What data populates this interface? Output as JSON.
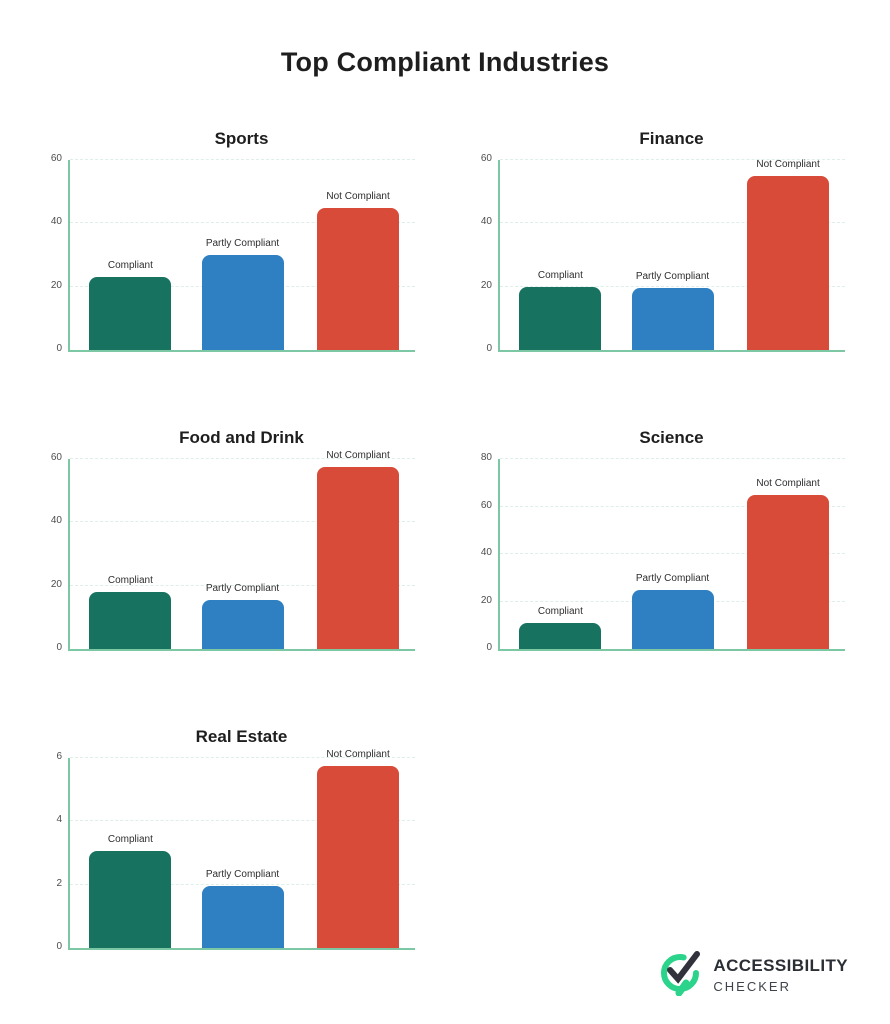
{
  "page": {
    "title": "Top Compliant Industries"
  },
  "colors": {
    "series": [
      "#177360",
      "#2F80C3",
      "#D84B38"
    ],
    "axis": "#7CC7A4",
    "gridline": "#DEEFE7",
    "title_text": "#1E1E1E",
    "label_text": "#2E2E2E",
    "tick_text": "#4D4D4D",
    "logo_green": "#2BD48A",
    "logo_dark": "#32323C",
    "background": "#FFFFFF"
  },
  "chart_data": [
    {
      "type": "bar",
      "title": "Sports",
      "categories": [
        "Compliant",
        "Partly Compliant",
        "Not Compliant"
      ],
      "values": [
        23,
        30,
        45
      ],
      "ylim": [
        0,
        60
      ],
      "yticks": [
        0,
        20,
        40,
        60
      ],
      "grid": "horizontal-dashed",
      "legend": "none",
      "bar_labels_position": "above-bars"
    },
    {
      "type": "bar",
      "title": "Finance",
      "categories": [
        "Compliant",
        "Partly Compliant",
        "Not Compliant"
      ],
      "values": [
        20,
        19.5,
        55
      ],
      "ylim": [
        0,
        60
      ],
      "yticks": [
        0,
        20,
        40,
        60
      ],
      "grid": "horizontal-dashed",
      "legend": "none",
      "bar_labels_position": "above-bars"
    },
    {
      "type": "bar",
      "title": "Food and Drink",
      "categories": [
        "Compliant",
        "Partly Compliant",
        "Not Compliant"
      ],
      "values": [
        18,
        15.5,
        57.5
      ],
      "ylim": [
        0,
        60
      ],
      "yticks": [
        0,
        20,
        40,
        60
      ],
      "grid": "horizontal-dashed",
      "legend": "none",
      "bar_labels_position": "above-bars"
    },
    {
      "type": "bar",
      "title": "Science",
      "categories": [
        "Compliant",
        "Partly Compliant",
        "Not Compliant"
      ],
      "values": [
        11,
        25,
        65
      ],
      "ylim": [
        0,
        80
      ],
      "yticks": [
        0,
        20,
        40,
        60,
        80
      ],
      "grid": "horizontal-dashed",
      "legend": "none",
      "bar_labels_position": "above-bars"
    },
    {
      "type": "bar",
      "title": "Real Estate",
      "categories": [
        "Compliant",
        "Partly Compliant",
        "Not Compliant"
      ],
      "values": [
        3.05,
        1.95,
        5.75
      ],
      "ylim": [
        0,
        6
      ],
      "yticks": [
        0,
        2,
        4,
        6
      ],
      "grid": "horizontal-dashed",
      "legend": "none",
      "bar_labels_position": "above-bars"
    }
  ],
  "logo": {
    "name": "ACCESSIBILITY",
    "sub": "CHECKER",
    "icon": "magnifier-check-icon"
  }
}
